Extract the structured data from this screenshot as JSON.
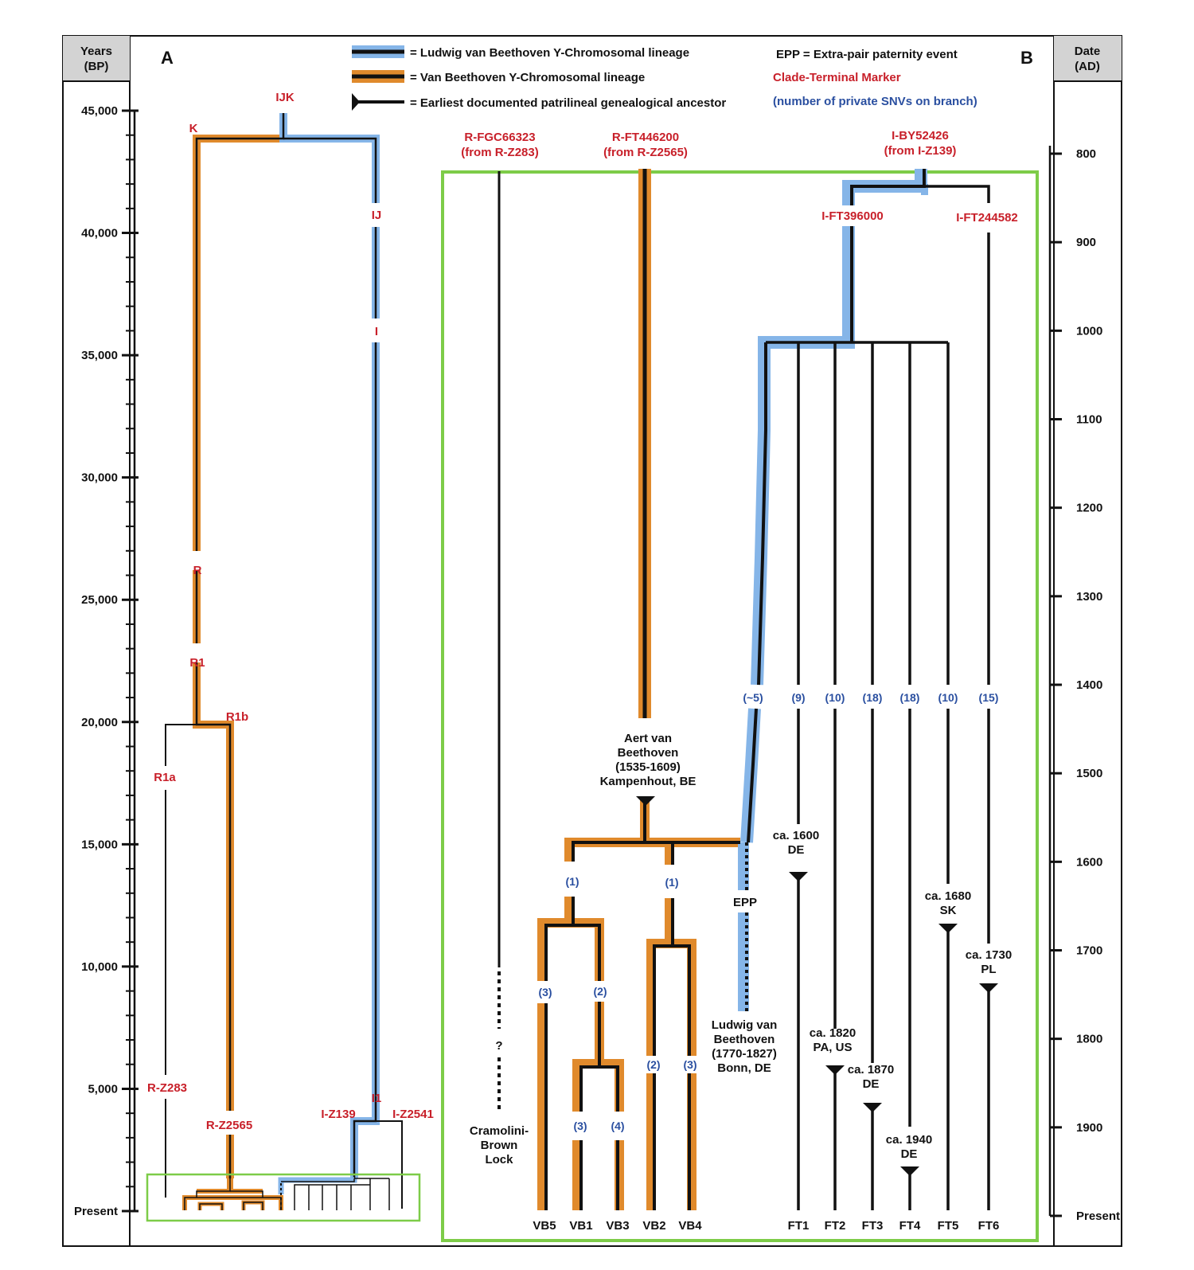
{
  "colors": {
    "ludwig_lineage": "#85b5e8",
    "van_beethoven_lineage": "#e08a2c",
    "marker": "#c8202a",
    "snv_count": "#2a4fa0",
    "inset_frame": "#7dcc48",
    "line": "#111111"
  },
  "axes": {
    "left_title_1": "Years",
    "left_title_2": "(BP)",
    "left_ticks": [
      "45,000",
      "40,000",
      "35,000",
      "30,000",
      "25,000",
      "20,000",
      "15,000",
      "10,000",
      "5,000",
      "Present"
    ],
    "right_title_1": "Date",
    "right_title_2": "(AD)",
    "right_ticks": [
      "800",
      "900",
      "1000",
      "1100",
      "1200",
      "1300",
      "1400",
      "1500",
      "1600",
      "1700",
      "1800",
      "1900",
      "Present"
    ]
  },
  "panels": {
    "a": "A",
    "b": "B"
  },
  "legend": {
    "ludwig": "= Ludwig van Beethoven Y-Chromosomal lineage",
    "vanbeethoven": "= Van Beethoven Y-Chromosomal lineage",
    "ancestor": "= Earliest documented patrilineal genealogical ancestor",
    "epp": "EPP = Extra-pair paternity event",
    "clade": "Clade-Terminal Marker",
    "snv": "(number of private SNVs on branch)"
  },
  "panel_a": {
    "ijk": "IJK",
    "k": "K",
    "ij": "IJ",
    "i": "I",
    "r": "R",
    "r1": "R1",
    "r1b": "R1b",
    "r1a": "R1a",
    "rz283": "R-Z283",
    "rz2565": "R-Z2565",
    "iz139": "I-Z139",
    "i1": "I1",
    "iz2541": "I-Z2541"
  },
  "panel_b": {
    "fgc_1": "R-FGC66323",
    "fgc_2": "(from R-Z283)",
    "ft446_1": "R-FT446200",
    "ft446_2": "(from R-Z2565)",
    "by52_1": "I-BY52426",
    "by52_2": "(from I-Z139)",
    "ft396": "I-FT396000",
    "ft244": "I-FT244582",
    "aert": [
      "Aert van",
      "Beethoven",
      "(1535-1609)",
      "Kampenhout, BE"
    ],
    "ludwig": [
      "Ludwig van",
      "Beethoven",
      "(1770-1827)",
      "Bonn, DE"
    ],
    "cramolini": [
      "Cramolini-",
      "Brown",
      "Lock"
    ],
    "question": "?",
    "epp": "EPP",
    "snv": {
      "vb_a": "(1)",
      "vb_b": "(1)",
      "vb5": "(3)",
      "vb1_3": "(2)",
      "vb1": "(3)",
      "vb3": "(4)",
      "vb2": "(2)",
      "vb4": "(3)",
      "ludwig": "(~5)",
      "ft1": "(9)",
      "ft2": "(10)",
      "ft3": "(18)",
      "ft4": "(18)",
      "ft5": "(10)",
      "ft6": "(15)"
    },
    "dates": {
      "ft1_1": "ca. 1600",
      "ft1_2": "DE",
      "ft5_1": "ca. 1680",
      "ft5_2": "SK",
      "ft6_1": "ca. 1730",
      "ft6_2": "PL",
      "ft2_1": "ca. 1820",
      "ft2_2": "PA, US",
      "ft3_1": "ca. 1870",
      "ft3_2": "DE",
      "ft4_1": "ca. 1940",
      "ft4_2": "DE"
    },
    "samples": [
      "VB5",
      "VB1",
      "VB3",
      "VB2",
      "VB4",
      "FT1",
      "FT2",
      "FT3",
      "FT4",
      "FT5",
      "FT6"
    ]
  }
}
